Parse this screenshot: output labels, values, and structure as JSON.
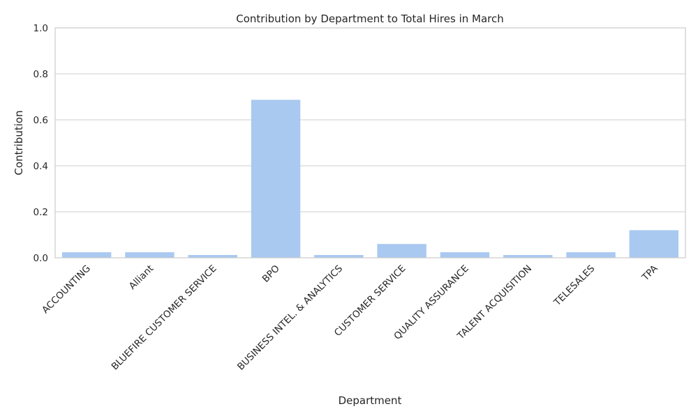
{
  "chart_data": {
    "type": "bar",
    "title": "Contribution by Department to Total Hires in March",
    "xlabel": "Department",
    "ylabel": "Contribution",
    "ylim": [
      0,
      1.0
    ],
    "yticks": [
      0.0,
      0.2,
      0.4,
      0.6,
      0.8,
      1.0
    ],
    "ytick_labels": [
      "0.0",
      "0.2",
      "0.4",
      "0.6",
      "0.8",
      "1.0"
    ],
    "grid": true,
    "bar_color": "#a9c9f0",
    "categories": [
      "ACCOUNTING",
      "Alliant",
      "BLUEFIRE CUSTOMER SERVICE",
      "BPO",
      "BUSINESS INTEL. & ANALYTICS",
      "CUSTOMER SERVICE",
      "QUALITY ASSURANCE",
      "TALENT ACQUISITION",
      "TELESALES",
      "TPA"
    ],
    "values": [
      0.024,
      0.024,
      0.012,
      0.687,
      0.012,
      0.06,
      0.024,
      0.012,
      0.024,
      0.12
    ]
  }
}
